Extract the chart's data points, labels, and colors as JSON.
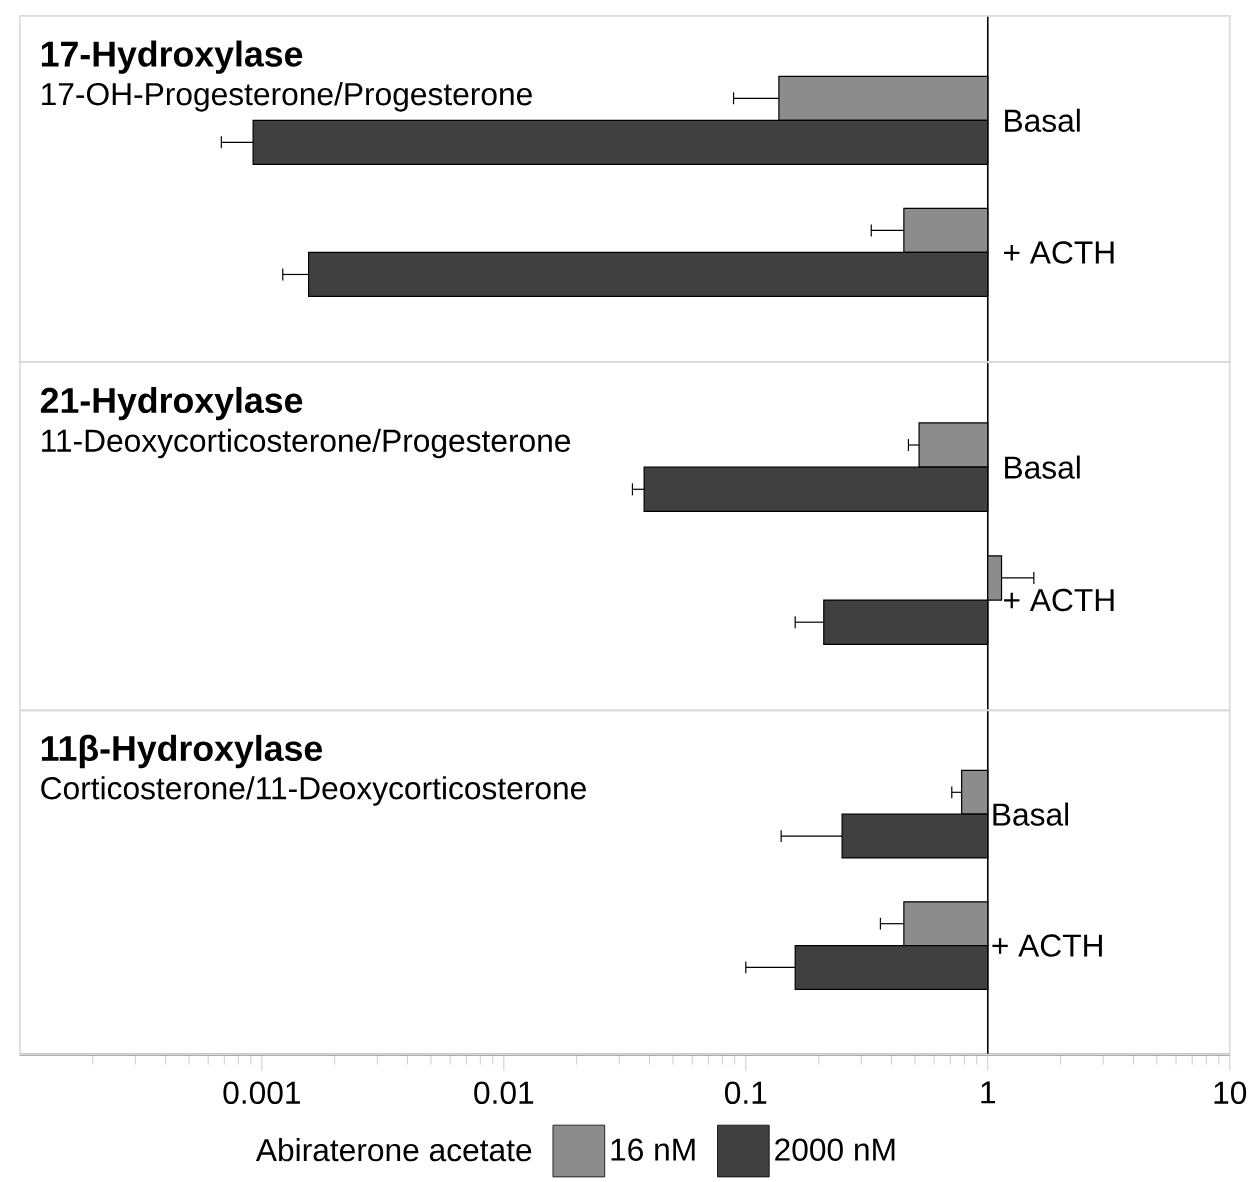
{
  "chart_data": [
    {
      "type": "bar",
      "orientation": "horizontal",
      "title": "17-Hydroxylase",
      "subtitle": "17-OH-Progesterone/Progesterone",
      "categories": [
        "Basal",
        "+ ACTH"
      ],
      "log": "x",
      "xlim": [
        0.0001,
        10
      ],
      "tick_labels": "y",
      "series": [
        {
          "color": "#8c8c8c",
          "base": [
            1,
            1
          ],
          "values": [
            -0.863,
            -0.55
          ],
          "errors": [
            [
              0.089,
              0.137
            ],
            [
              0.33,
              0.45
            ]
          ]
        },
        {
          "color": "#404040",
          "base": [
            1,
            1
          ],
          "values": [
            -0.99908,
            -0.99844
          ],
          "errors": [
            [
              0.00068,
              0.00092
            ],
            [
              0.00122,
              0.00156
            ]
          ]
        }
      ]
    },
    {
      "type": "bar",
      "orientation": "horizontal",
      "title": "21-Hydroxylase",
      "subtitle": "11-Deoxycorticosterone/Progesterone",
      "categories": [
        "Basal",
        "+ ACTH"
      ],
      "log": "x",
      "xlim": [
        0.0001,
        10
      ],
      "tick_labels": "y",
      "series": [
        {
          "color": "#8c8c8c",
          "base": [
            1,
            1
          ],
          "values": [
            -0.48,
            0.14
          ],
          "errors": [
            [
              0.47,
              0.52
            ],
            [
              1.14,
              1.55
            ]
          ]
        },
        {
          "color": "#404040",
          "base": [
            1,
            1
          ],
          "values": [
            -0.962,
            -0.79
          ],
          "errors": [
            [
              0.034,
              0.038
            ],
            [
              0.16,
              0.21
            ]
          ]
        }
      ]
    },
    {
      "type": "bar",
      "orientation": "horizontal",
      "title": "11β-Hydroxylase",
      "subtitle": "Corticosterone/11-Deoxycorticosterone",
      "categories": [
        "Basal",
        "+ ACTH"
      ],
      "log": "x",
      "xlim": [
        0.0001,
        10
      ],
      "xticks": [
        0.001,
        0.01,
        0.1,
        1,
        10
      ],
      "legend": "bottom",
      "legend_title": "Abiraterone acetate",
      "series": [
        {
          "name": "16 nM",
          "color": "#8c8c8c",
          "base": [
            1,
            1
          ],
          "values": [
            -0.22,
            -0.55
          ],
          "errors": [
            [
              0.71,
              0.78
            ],
            [
              0.36,
              0.45
            ]
          ]
        },
        {
          "name": "2000 nM",
          "color": "#404040",
          "base": [
            1,
            1
          ],
          "values": [
            -0.75,
            -0.84
          ],
          "errors": [
            [
              0.14,
              0.25
            ],
            [
              0.1,
              0.16
            ]
          ]
        }
      ]
    }
  ]
}
